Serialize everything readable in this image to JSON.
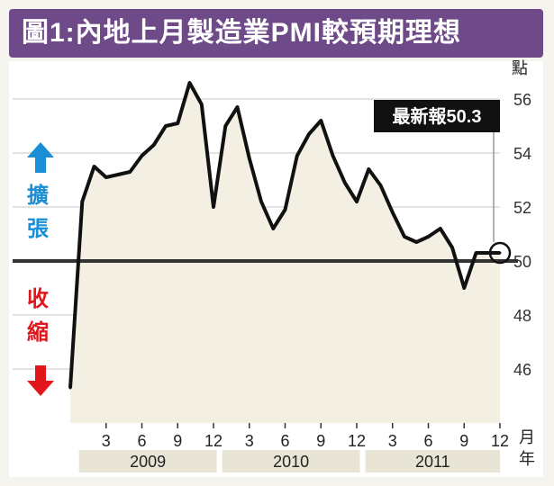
{
  "title": "圖1:內地上月製造業PMI較預期理想",
  "y_unit_label": "點",
  "x_unit_label_top": "月",
  "x_unit_label_bottom": "年",
  "expansion_label": [
    "擴",
    "張"
  ],
  "contraction_label": [
    "收",
    "縮"
  ],
  "latest_callout": "最新報50.3",
  "colors": {
    "title_bg": "#6e4b88",
    "line": "#111111",
    "fill": "#f3efe2",
    "expand": "#1a8fd6",
    "contract": "#e0161a",
    "threshold": "#333333"
  },
  "chart_data": {
    "type": "line",
    "title": "內地上月製造業PMI較預期理想",
    "ylabel": "點",
    "xlabel": "月/年",
    "ylim": [
      44,
      57
    ],
    "yticks": [
      46,
      48,
      50,
      52,
      54,
      56
    ],
    "threshold": 50,
    "x_tick_labels": [
      "3",
      "6",
      "9",
      "12",
      "3",
      "6",
      "9",
      "12",
      "3",
      "6",
      "9",
      "12"
    ],
    "year_labels": [
      "2009",
      "2010",
      "2011"
    ],
    "x": [
      "2008-12",
      "2009-01",
      "2009-02",
      "2009-03",
      "2009-04",
      "2009-05",
      "2009-06",
      "2009-07",
      "2009-08",
      "2009-09",
      "2009-10",
      "2009-11",
      "2009-12",
      "2010-01",
      "2010-02",
      "2010-03",
      "2010-04",
      "2010-05",
      "2010-06",
      "2010-07",
      "2010-08",
      "2010-09",
      "2010-10",
      "2010-11",
      "2010-12",
      "2011-01",
      "2011-02",
      "2011-03",
      "2011-04",
      "2011-05",
      "2011-06",
      "2011-07",
      "2011-08",
      "2011-09",
      "2011-10",
      "2011-11",
      "2011-12"
    ],
    "values": [
      45.3,
      52.2,
      53.5,
      53.1,
      53.2,
      53.3,
      53.9,
      54.3,
      55.0,
      55.1,
      56.6,
      55.8,
      52.0,
      55.0,
      55.7,
      53.8,
      52.2,
      51.2,
      51.9,
      53.9,
      54.7,
      55.2,
      53.9,
      52.9,
      52.2,
      53.4,
      52.8,
      51.8,
      50.9,
      50.7,
      50.9,
      51.2,
      50.5,
      49.0,
      50.3,
      50.3,
      50.3
    ],
    "latest_value": 50.3,
    "grid": "horizontal"
  }
}
